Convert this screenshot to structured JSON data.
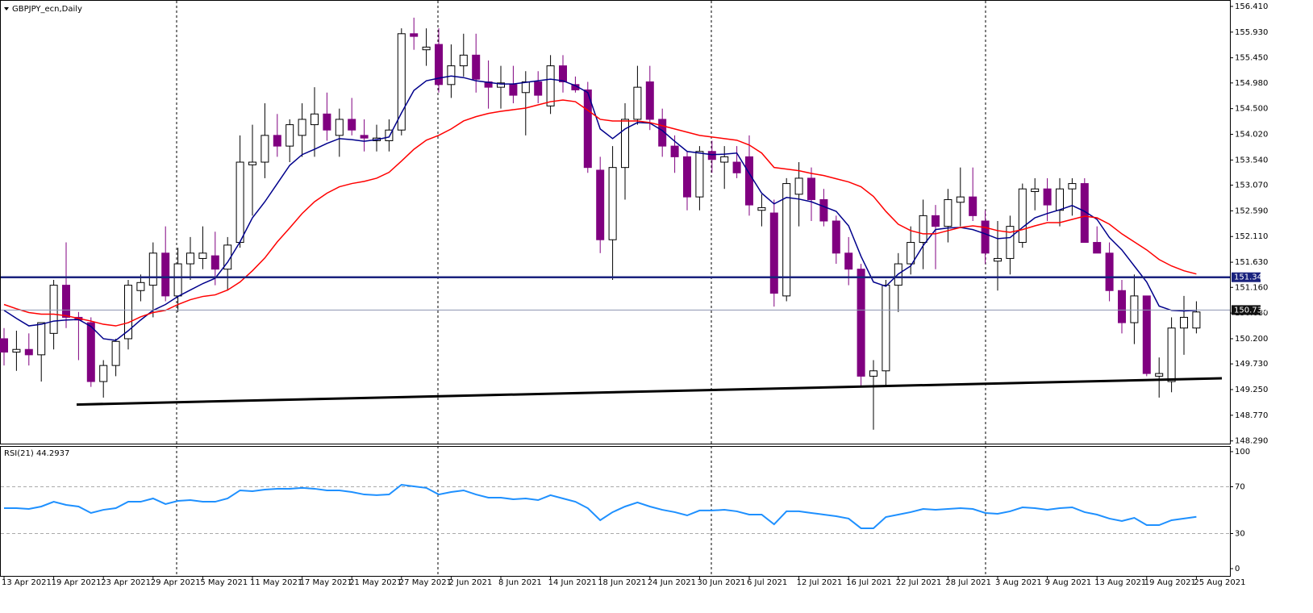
{
  "chart_data": [
    {
      "type": "candlestick",
      "title": "GBPJPY_ecn,Daily",
      "categories": [
        "13 Apr 2021",
        null,
        null,
        null,
        "19 Apr 2021",
        null,
        null,
        null,
        "23 Apr 2021",
        null,
        null,
        null,
        "29 Apr 2021",
        null,
        null,
        null,
        "5 May 2021",
        null,
        null,
        null,
        "11 May 2021",
        null,
        null,
        null,
        "17 May 2021",
        null,
        null,
        null,
        "21 May 2021",
        null,
        null,
        null,
        "27 May 2021",
        null,
        null,
        null,
        "2 Jun 2021",
        null,
        null,
        null,
        "8 Jun 2021",
        null,
        null,
        null,
        "14 Jun 2021",
        null,
        null,
        null,
        "18 Jun 2021",
        null,
        null,
        null,
        "24 Jun 2021",
        null,
        null,
        null,
        "30 Jun 2021",
        null,
        null,
        null,
        "6 Jul 2021",
        null,
        null,
        null,
        "12 Jul 2021",
        null,
        null,
        null,
        "16 Jul 2021",
        null,
        null,
        null,
        "22 Jul 2021",
        null,
        null,
        null,
        "28 Jul 2021",
        null,
        null,
        null,
        "3 Aug 2021",
        null,
        null,
        null,
        "9 Aug 2021",
        null,
        null,
        null,
        "13 Aug 2021",
        null,
        null,
        null,
        "19 Aug 2021",
        null,
        null,
        null,
        "25 Aug 2021"
      ],
      "open": [
        150.2,
        149.95,
        150.0,
        149.9,
        150.3,
        151.2,
        150.6,
        150.5,
        149.4,
        149.7,
        150.2,
        151.1,
        151.2,
        151.8,
        151.0,
        151.6,
        151.7,
        151.75,
        151.5,
        152.0,
        153.45,
        153.5,
        154.0,
        153.8,
        154.0,
        154.2,
        154.4,
        154.0,
        154.3,
        154.0,
        153.9,
        153.9,
        154.1,
        155.9,
        155.6,
        155.7,
        154.95,
        155.3,
        155.5,
        155.0,
        154.9,
        154.95,
        154.8,
        155.0,
        154.55,
        155.3,
        154.95,
        154.85,
        153.35,
        152.05,
        153.4,
        154.3,
        155.0,
        154.3,
        153.8,
        153.6,
        152.85,
        153.7,
        153.5,
        153.5,
        153.6,
        152.6,
        152.55,
        151.0,
        152.9,
        153.2,
        152.8,
        152.4,
        151.8,
        151.5,
        149.5,
        149.6,
        151.2,
        151.6,
        152.0,
        152.5,
        152.3,
        152.75,
        152.85,
        152.4,
        151.65,
        151.7,
        152.0,
        152.95,
        153.0,
        152.6,
        153.0,
        153.1,
        152.0,
        151.8,
        151.1,
        150.5,
        151.0,
        149.5,
        149.4,
        150.4,
        150.4
      ],
      "high": [
        150.4,
        150.35,
        150.3,
        150.5,
        151.3,
        152.0,
        150.7,
        150.6,
        149.8,
        150.2,
        151.3,
        151.4,
        152.0,
        152.3,
        151.9,
        152.1,
        152.3,
        152.2,
        152.1,
        154.0,
        154.2,
        154.6,
        154.4,
        154.3,
        154.6,
        154.9,
        154.8,
        154.5,
        154.7,
        154.3,
        154.2,
        154.3,
        156.0,
        156.2,
        156.0,
        156.0,
        155.7,
        155.9,
        155.9,
        155.4,
        155.3,
        155.3,
        155.2,
        155.2,
        155.5,
        155.5,
        155.1,
        155.0,
        153.6,
        153.8,
        154.6,
        155.3,
        155.3,
        154.5,
        154.0,
        153.7,
        153.8,
        153.9,
        153.8,
        153.8,
        154.0,
        152.9,
        152.8,
        153.2,
        153.5,
        153.4,
        153.0,
        152.5,
        152.1,
        151.6,
        149.8,
        151.3,
        151.8,
        152.3,
        152.8,
        152.7,
        153.0,
        153.4,
        153.4,
        152.6,
        152.4,
        152.5,
        153.1,
        153.2,
        153.2,
        153.2,
        153.2,
        153.2,
        152.3,
        152.0,
        151.3,
        151.4,
        151.0,
        149.85,
        150.6,
        151.0,
        150.9
      ],
      "low": [
        149.7,
        149.6,
        149.7,
        149.4,
        150.0,
        150.4,
        149.8,
        149.3,
        149.1,
        149.5,
        150.0,
        150.9,
        150.6,
        150.9,
        150.7,
        151.3,
        151.5,
        151.2,
        151.1,
        151.9,
        152.5,
        153.2,
        153.6,
        153.5,
        153.6,
        153.6,
        153.9,
        153.6,
        154.0,
        153.7,
        153.7,
        153.7,
        154.0,
        155.6,
        155.3,
        154.8,
        154.7,
        155.1,
        154.8,
        154.5,
        154.5,
        154.6,
        154.0,
        154.6,
        154.4,
        154.8,
        154.8,
        153.3,
        151.8,
        151.3,
        152.8,
        154.2,
        154.1,
        153.6,
        153.3,
        152.6,
        152.6,
        153.3,
        153.0,
        153.2,
        152.5,
        152.3,
        150.8,
        150.9,
        152.3,
        152.4,
        152.3,
        151.6,
        151.2,
        149.3,
        148.5,
        149.3,
        150.7,
        151.4,
        151.5,
        151.5,
        152.0,
        152.3,
        152.4,
        151.6,
        151.1,
        151.4,
        151.9,
        152.6,
        152.4,
        152.3,
        152.5,
        152.0,
        151.8,
        150.9,
        150.3,
        150.1,
        149.5,
        149.1,
        149.2,
        149.9,
        150.3
      ],
      "close": [
        149.95,
        150.0,
        149.9,
        150.5,
        151.2,
        150.6,
        150.55,
        149.4,
        149.7,
        150.15,
        151.2,
        151.25,
        151.8,
        151.0,
        151.6,
        151.8,
        151.8,
        151.5,
        151.95,
        153.5,
        153.5,
        154.0,
        153.8,
        154.2,
        154.3,
        154.4,
        154.1,
        154.3,
        154.1,
        153.95,
        153.95,
        154.1,
        155.9,
        155.85,
        155.65,
        154.95,
        155.3,
        155.5,
        155.05,
        154.9,
        154.98,
        154.75,
        155.0,
        154.75,
        155.3,
        155.0,
        154.85,
        153.4,
        152.05,
        153.4,
        154.3,
        154.9,
        154.3,
        153.8,
        153.6,
        152.85,
        153.7,
        153.55,
        153.6,
        153.3,
        152.7,
        152.65,
        151.05,
        153.1,
        153.2,
        152.8,
        152.4,
        151.8,
        151.5,
        149.5,
        149.6,
        151.2,
        151.6,
        152.0,
        152.5,
        152.3,
        152.8,
        152.85,
        152.5,
        151.8,
        151.7,
        152.3,
        153.0,
        153.0,
        152.7,
        153.0,
        153.1,
        152.0,
        151.8,
        151.1,
        150.5,
        151.0,
        149.55,
        149.55,
        150.4,
        150.6,
        150.7
      ],
      "bull_color": "#ffffff",
      "bear_color": "#800080",
      "series": [
        {
          "color": "#00008b",
          "values": [
            150.73,
            150.58,
            150.44,
            150.47,
            150.53,
            150.55,
            150.56,
            150.43,
            150.2,
            150.17,
            150.35,
            150.55,
            150.73,
            150.84,
            150.99,
            151.11,
            151.23,
            151.33,
            151.63,
            152.01,
            152.46,
            152.76,
            153.1,
            153.44,
            153.64,
            153.74,
            153.85,
            153.94,
            153.92,
            153.89,
            153.92,
            153.97,
            154.42,
            154.84,
            155.02,
            155.07,
            155.11,
            155.08,
            155.02,
            154.99,
            154.96,
            154.96,
            154.99,
            155.02,
            155.05,
            155.02,
            154.93,
            154.8,
            154.12,
            153.94,
            154.12,
            154.24,
            154.23,
            154.09,
            153.89,
            153.7,
            153.67,
            153.64,
            153.65,
            153.67,
            153.29,
            152.92,
            152.72,
            152.84,
            152.81,
            152.76,
            152.67,
            152.58,
            152.31,
            151.74,
            151.26,
            151.18,
            151.41,
            151.56,
            151.94,
            152.24,
            152.27,
            152.28,
            152.24,
            152.16,
            152.07,
            152.09,
            152.28,
            152.46,
            152.54,
            152.61,
            152.69,
            152.58,
            152.43,
            152.09,
            151.86,
            151.56,
            151.26,
            150.81,
            150.73,
            150.72,
            150.73
          ]
        },
        {
          "color": "#ff0000",
          "values": [
            150.84,
            150.76,
            150.69,
            150.66,
            150.66,
            150.63,
            150.58,
            150.53,
            150.47,
            150.44,
            150.5,
            150.61,
            150.69,
            150.73,
            150.84,
            150.93,
            150.99,
            151.02,
            151.11,
            151.26,
            151.47,
            151.71,
            152.01,
            152.27,
            152.54,
            152.76,
            152.92,
            153.04,
            153.1,
            153.14,
            153.2,
            153.31,
            153.52,
            153.74,
            153.91,
            154.0,
            154.12,
            154.27,
            154.35,
            154.41,
            154.45,
            154.48,
            154.51,
            154.57,
            154.63,
            154.66,
            154.63,
            154.47,
            154.3,
            154.27,
            154.27,
            154.27,
            154.24,
            154.18,
            154.12,
            154.06,
            154.0,
            153.97,
            153.94,
            153.91,
            153.82,
            153.67,
            153.4,
            153.37,
            153.34,
            153.29,
            153.25,
            153.19,
            153.13,
            153.04,
            152.86,
            152.58,
            152.34,
            152.22,
            152.16,
            152.16,
            152.22,
            152.28,
            152.31,
            152.28,
            152.22,
            152.19,
            152.24,
            152.31,
            152.37,
            152.37,
            152.43,
            152.49,
            152.46,
            152.34,
            152.16,
            152.01,
            151.86,
            151.68,
            151.56,
            151.47,
            151.41
          ]
        }
      ],
      "hlines": [
        {
          "value": 151.349,
          "color": "#1a237e"
        }
      ],
      "price_line": {
        "value": 150.736,
        "color": "#8c93b0"
      },
      "trendline": {
        "values": [
          148.97,
          149.46
        ],
        "color": "#000000"
      },
      "ylim": [
        148.24,
        156.53
      ],
      "yticks": [
        {
          "value": 156.41,
          "label": "156.410"
        },
        {
          "value": 155.93,
          "label": "155.930"
        },
        {
          "value": 155.45,
          "label": "155.450"
        },
        {
          "value": 154.98,
          "label": "154.980"
        },
        {
          "value": 154.5,
          "label": "154.500"
        },
        {
          "value": 154.02,
          "label": "154.020"
        },
        {
          "value": 153.54,
          "label": "153.540"
        },
        {
          "value": 153.07,
          "label": "153.070"
        },
        {
          "value": 152.59,
          "label": "152.590"
        },
        {
          "value": 152.11,
          "label": "152.110"
        },
        {
          "value": 151.63,
          "label": "151.630"
        },
        {
          "value": 151.16,
          "label": "151.160"
        },
        {
          "value": 150.68,
          "label": "150.680"
        },
        {
          "value": 150.2,
          "label": "150.200"
        },
        {
          "value": 149.73,
          "label": "149.730"
        },
        {
          "value": 149.25,
          "label": "149.250"
        },
        {
          "value": 148.77,
          "label": "148.770"
        },
        {
          "value": 148.29,
          "label": "148.290"
        }
      ]
    },
    {
      "type": "line",
      "title": "RSI(21) 44.2937",
      "color": "#1e90ff",
      "values": [
        51.7,
        51.7,
        51.0,
        53.1,
        57.2,
        54.5,
        53.1,
        47.6,
        50.3,
        51.7,
        57.2,
        57.2,
        60.0,
        55.2,
        57.9,
        58.6,
        57.2,
        57.2,
        60.0,
        66.9,
        66.2,
        67.6,
        68.3,
        68.3,
        69.0,
        68.3,
        66.9,
        66.9,
        65.5,
        63.4,
        62.8,
        63.4,
        71.7,
        70.3,
        69.0,
        63.4,
        65.5,
        66.9,
        63.4,
        60.7,
        60.7,
        59.3,
        60.0,
        58.6,
        62.8,
        60.0,
        57.2,
        51.7,
        41.4,
        48.3,
        53.1,
        56.6,
        53.1,
        50.3,
        48.3,
        45.5,
        49.7,
        49.7,
        50.3,
        49.0,
        46.2,
        46.2,
        37.9,
        49.0,
        49.0,
        47.6,
        46.2,
        44.8,
        42.8,
        34.5,
        34.5,
        44.1,
        46.2,
        48.3,
        51.0,
        50.3,
        51.0,
        51.7,
        51.0,
        47.6,
        46.9,
        49.0,
        52.4,
        51.7,
        50.3,
        51.7,
        52.4,
        48.3,
        46.2,
        42.8,
        40.7,
        43.4,
        37.2,
        37.2,
        41.4,
        42.8,
        44.29
      ],
      "ylim": [
        -6.2,
        104.8
      ],
      "yticks": [
        0,
        30,
        70,
        100
      ],
      "levels": [
        30,
        70
      ]
    }
  ]
}
